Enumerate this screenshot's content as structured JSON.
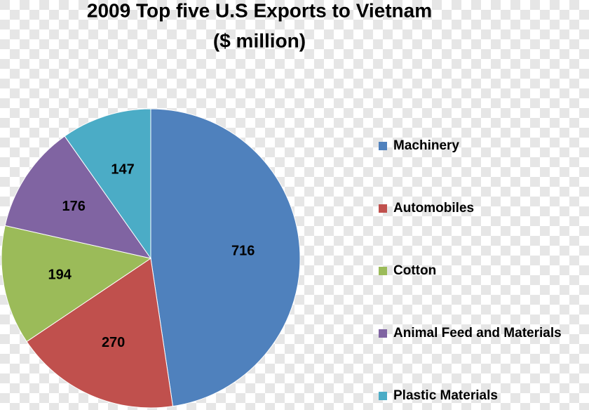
{
  "chart_data": {
    "type": "pie",
    "title": "2009 Top five U.S Exports to Vietnam",
    "subtitle": "($ million)",
    "categories": [
      "Machinery",
      "Automobiles",
      "Cotton",
      "Animal Feed and Materials",
      "Plastic Materials"
    ],
    "values": [
      716,
      270,
      194,
      176,
      147
    ],
    "colors": [
      "#4f81bd",
      "#c0504d",
      "#9bbb59",
      "#8064a2",
      "#4bacc6"
    ],
    "legend": "right"
  }
}
